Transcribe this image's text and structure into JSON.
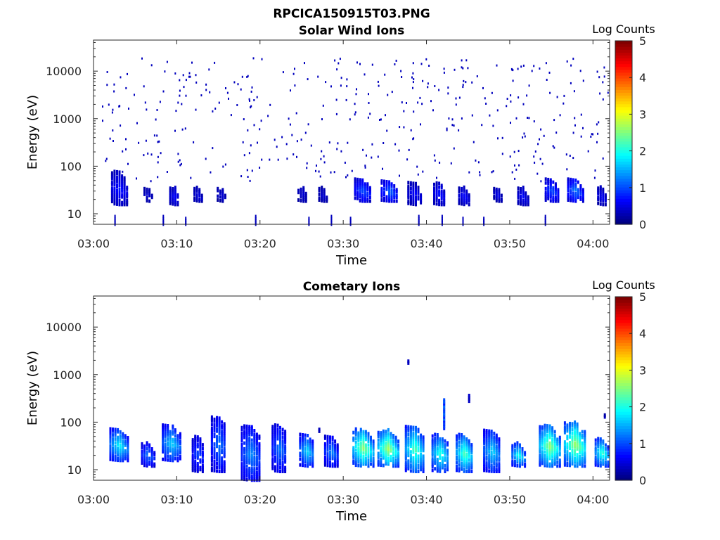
{
  "figure": {
    "title": "RPCICA150915T03.PNG"
  },
  "chart_data": [
    {
      "type": "heatmap",
      "title": "Solar Wind Ions",
      "xlabel": "Time",
      "ylabel": "Energy (eV)",
      "x_range": [
        "03:00",
        "04:02"
      ],
      "y_scale": "log",
      "y_range": [
        6,
        45000
      ],
      "x_ticks": [
        "03:00",
        "03:10",
        "03:20",
        "03:30",
        "03:40",
        "03:50",
        "04:00"
      ],
      "y_ticks": [
        {
          "value": 10,
          "label": "10"
        },
        {
          "value": 100,
          "label": "100"
        },
        {
          "value": 1000,
          "label": "1000"
        },
        {
          "value": 10000,
          "label": "10000"
        }
      ],
      "colorbar": {
        "label": "Log Counts",
        "min": 0,
        "max": 5,
        "ticks": [
          "0",
          "1",
          "2",
          "3",
          "4",
          "5"
        ],
        "colormap": "jet"
      },
      "bursts": [
        {
          "t": 3.0,
          "e_low": 17,
          "e_high": 85,
          "peak": 0.7,
          "width_min": 1.8
        },
        {
          "t": 6.5,
          "e_low": 20,
          "e_high": 40,
          "peak": 0.4,
          "width_min": 1.0
        },
        {
          "t": 9.7,
          "e_low": 17,
          "e_high": 40,
          "peak": 0.6,
          "width_min": 1.2
        },
        {
          "t": 12.5,
          "e_low": 20,
          "e_high": 40,
          "peak": 0.5,
          "width_min": 1.0
        },
        {
          "t": 15.3,
          "e_low": 20,
          "e_high": 40,
          "peak": 0.4,
          "width_min": 1.0
        },
        {
          "t": 25.0,
          "e_low": 20,
          "e_high": 45,
          "peak": 0.4,
          "width_min": 1.0
        },
        {
          "t": 27.5,
          "e_low": 20,
          "e_high": 40,
          "peak": 0.4,
          "width_min": 1.0
        },
        {
          "t": 32.3,
          "e_low": 20,
          "e_high": 60,
          "peak": 1.0,
          "width_min": 2.0
        },
        {
          "t": 35.5,
          "e_low": 20,
          "e_high": 55,
          "peak": 1.1,
          "width_min": 2.0
        },
        {
          "t": 38.5,
          "e_low": 17,
          "e_high": 50,
          "peak": 0.6,
          "width_min": 1.6
        },
        {
          "t": 41.5,
          "e_low": 17,
          "e_high": 50,
          "peak": 0.7,
          "width_min": 1.4
        },
        {
          "t": 44.5,
          "e_low": 17,
          "e_high": 40,
          "peak": 0.6,
          "width_min": 1.4
        },
        {
          "t": 48.5,
          "e_low": 20,
          "e_high": 40,
          "peak": 0.5,
          "width_min": 1.0
        },
        {
          "t": 51.5,
          "e_low": 17,
          "e_high": 40,
          "peak": 0.6,
          "width_min": 1.2
        },
        {
          "t": 55.0,
          "e_low": 20,
          "e_high": 60,
          "peak": 1.0,
          "width_min": 1.6
        },
        {
          "t": 57.8,
          "e_low": 20,
          "e_high": 60,
          "peak": 1.2,
          "width_min": 1.8
        },
        {
          "t": 61.0,
          "e_low": 17,
          "e_high": 40,
          "peak": 0.6,
          "width_min": 1.0
        }
      ],
      "background_hits": {
        "e_min": 50,
        "e_max": 20000,
        "level": 0.3
      },
      "columns": [
        {
          "t": 2.5,
          "e_low": 6,
          "e_high": 10
        },
        {
          "t": 8.3,
          "e_low": 6,
          "e_high": 10
        },
        {
          "t": 11.0,
          "e_low": 6,
          "e_high": 9
        },
        {
          "t": 19.4,
          "e_low": 6,
          "e_high": 10
        },
        {
          "t": 25.8,
          "e_low": 6,
          "e_high": 9
        },
        {
          "t": 28.5,
          "e_low": 6,
          "e_high": 10
        },
        {
          "t": 30.8,
          "e_low": 6,
          "e_high": 9
        },
        {
          "t": 39.0,
          "e_low": 6,
          "e_high": 10
        },
        {
          "t": 41.8,
          "e_low": 6,
          "e_high": 10
        },
        {
          "t": 44.3,
          "e_low": 6,
          "e_high": 9
        },
        {
          "t": 46.8,
          "e_low": 6,
          "e_high": 9
        },
        {
          "t": 54.2,
          "e_low": 6,
          "e_high": 10
        }
      ]
    },
    {
      "type": "heatmap",
      "title": "Cometary Ions",
      "xlabel": "Time",
      "ylabel": "Energy (eV)",
      "x_range": [
        "03:00",
        "04:02"
      ],
      "y_scale": "log",
      "y_range": [
        6,
        45000
      ],
      "x_ticks": [
        "03:00",
        "03:10",
        "03:20",
        "03:30",
        "03:40",
        "03:50",
        "04:00"
      ],
      "y_ticks": [
        {
          "value": 10,
          "label": "10"
        },
        {
          "value": 100,
          "label": "100"
        },
        {
          "value": 1000,
          "label": "1000"
        },
        {
          "value": 10000,
          "label": "10000"
        }
      ],
      "colorbar": {
        "label": "Log Counts",
        "min": 0,
        "max": 5,
        "ticks": [
          "0",
          "1",
          "2",
          "3",
          "4",
          "5"
        ],
        "colormap": "jet"
      },
      "bursts": [
        {
          "t": 3.0,
          "e_low": 17,
          "e_high": 80,
          "peak": 1.9,
          "width_min": 2.2
        },
        {
          "t": 6.5,
          "e_low": 13,
          "e_high": 40,
          "peak": 1.2,
          "width_min": 1.6
        },
        {
          "t": 9.3,
          "e_low": 17,
          "e_high": 95,
          "peak": 1.7,
          "width_min": 2.2
        },
        {
          "t": 12.5,
          "e_low": 10,
          "e_high": 55,
          "peak": 1.0,
          "width_min": 1.4
        },
        {
          "t": 15.0,
          "e_low": 10,
          "e_high": 140,
          "peak": 1.2,
          "width_min": 1.8
        },
        {
          "t": 18.8,
          "e_low": 6,
          "e_high": 95,
          "peak": 1.3,
          "width_min": 2.2
        },
        {
          "t": 22.3,
          "e_low": 10,
          "e_high": 95,
          "peak": 1.2,
          "width_min": 1.8
        },
        {
          "t": 25.6,
          "e_low": 13,
          "e_high": 60,
          "peak": 1.7,
          "width_min": 1.8
        },
        {
          "t": 28.5,
          "e_low": 13,
          "e_high": 55,
          "peak": 1.3,
          "width_min": 1.6
        },
        {
          "t": 32.3,
          "e_low": 13,
          "e_high": 80,
          "peak": 2.6,
          "width_min": 2.4
        },
        {
          "t": 35.3,
          "e_low": 13,
          "e_high": 75,
          "peak": 2.7,
          "width_min": 2.4
        },
        {
          "t": 38.5,
          "e_low": 10,
          "e_high": 90,
          "peak": 2.3,
          "width_min": 2.2
        },
        {
          "t": 41.6,
          "e_low": 10,
          "e_high": 60,
          "peak": 2.1,
          "width_min": 2.0
        },
        {
          "t": 44.5,
          "e_low": 10,
          "e_high": 60,
          "peak": 2.3,
          "width_min": 2.0
        },
        {
          "t": 47.8,
          "e_low": 10,
          "e_high": 75,
          "peak": 1.7,
          "width_min": 2.0
        },
        {
          "t": 51.0,
          "e_low": 13,
          "e_high": 40,
          "peak": 2.0,
          "width_min": 1.6
        },
        {
          "t": 54.7,
          "e_low": 13,
          "e_high": 95,
          "peak": 2.6,
          "width_min": 2.4
        },
        {
          "t": 57.8,
          "e_low": 13,
          "e_high": 110,
          "peak": 2.7,
          "width_min": 2.6
        },
        {
          "t": 61.0,
          "e_low": 13,
          "e_high": 50,
          "peak": 2.2,
          "width_min": 1.6
        }
      ],
      "spikes": [
        {
          "t": 42.0,
          "e_low": 80,
          "e_high": 330,
          "peak": 1.2
        },
        {
          "t": 45.0,
          "e_low": 300,
          "e_high": 400,
          "peak": 0.4
        },
        {
          "t": 37.7,
          "e_low": 1900,
          "e_high": 2100,
          "peak": 0.4
        },
        {
          "t": 27.0,
          "e_low": 70,
          "e_high": 80,
          "peak": 0.3
        },
        {
          "t": 61.3,
          "e_low": 140,
          "e_high": 160,
          "peak": 0.3
        }
      ]
    }
  ]
}
